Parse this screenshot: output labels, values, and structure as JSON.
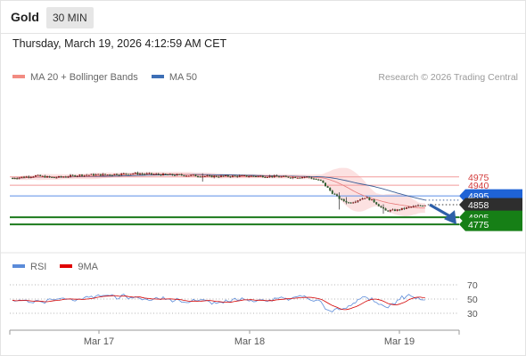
{
  "header": {
    "symbol": "Gold",
    "timeframe": "30 MIN"
  },
  "timestamp": "Thursday, March 19, 2026 4:12:59 AM CET",
  "legend": {
    "main": [
      {
        "label": "MA 20 + Bollinger Bands",
        "color": "#f28b82"
      },
      {
        "label": "MA 50",
        "color": "#3d6fb6"
      }
    ],
    "rsi": [
      {
        "label": "RSI",
        "color": "#5b8bd9"
      },
      {
        "label": "9MA",
        "color": "#e00000"
      }
    ]
  },
  "copyright": "Research © 2026 Trading Central",
  "chart_data": {
    "type": "candlestick",
    "yrange": [
      4748,
      5051
    ],
    "price_levels": [
      {
        "label": "4975",
        "value": 4975,
        "kind": "resistance"
      },
      {
        "label": "4940",
        "value": 4940,
        "kind": "resistance"
      },
      {
        "label": "4895",
        "value": 4895,
        "kind": "pivot"
      },
      {
        "label": "4858",
        "value": 4858,
        "kind": "last"
      },
      {
        "label": "4805",
        "value": 4805,
        "kind": "support"
      },
      {
        "label": "4775",
        "value": 4775,
        "kind": "support"
      }
    ],
    "x_labels": [
      "Mar 17",
      "Mar 18",
      "Mar 19"
    ],
    "projection": {
      "from": 4858,
      "to": 4790
    },
    "rsi": {
      "levels": [
        "70",
        "50",
        "30"
      ],
      "range": [
        0,
        100
      ]
    }
  }
}
